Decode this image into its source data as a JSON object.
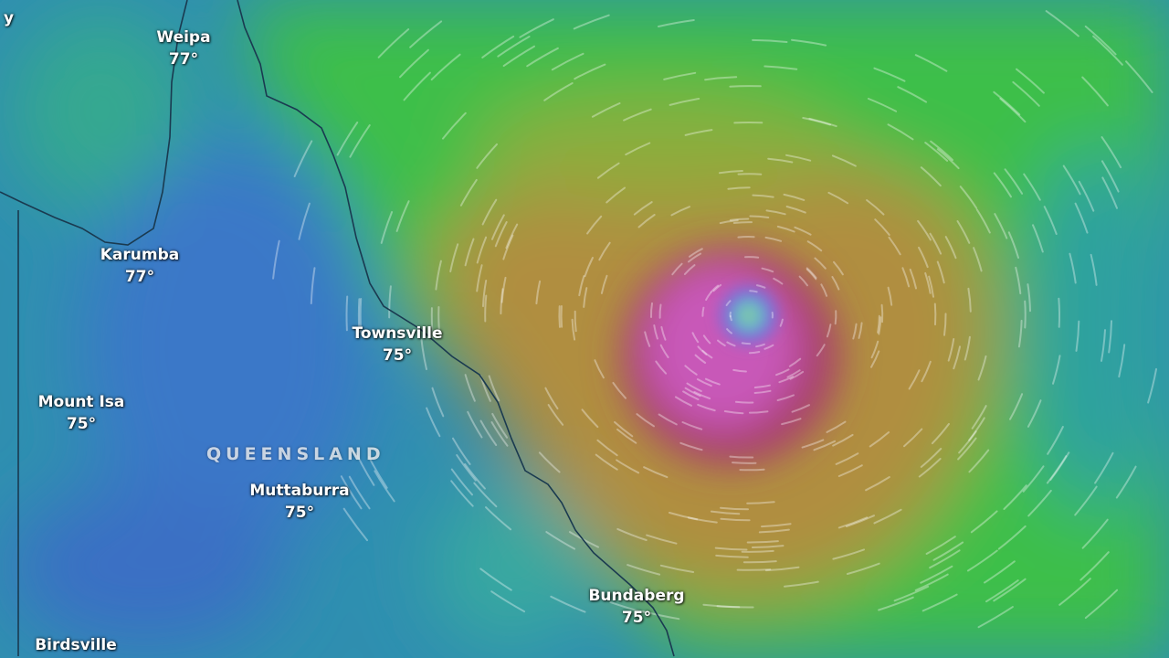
{
  "map": {
    "type": "weather wind/temperature overlay",
    "region_label": "QUEENSLAND",
    "partial_label": "y",
    "cities": [
      {
        "name": "Weipa",
        "temp": "77°"
      },
      {
        "name": "Karumba",
        "temp": "77°"
      },
      {
        "name": "Townsville",
        "temp": "75°"
      },
      {
        "name": "Mount Isa",
        "temp": "75°"
      },
      {
        "name": "Muttaburra",
        "temp": "75°"
      },
      {
        "name": "Bundaberg",
        "temp": "75°"
      },
      {
        "name": "Birdsville"
      }
    ],
    "colors": {
      "calm": "#3a7fc8",
      "light": "#2fa4a8",
      "moderate": "#3cc24a",
      "strong": "#b0903c",
      "severe": "#b04a7a",
      "extreme": "#d060d0",
      "eye": "#5ad0c0"
    }
  }
}
